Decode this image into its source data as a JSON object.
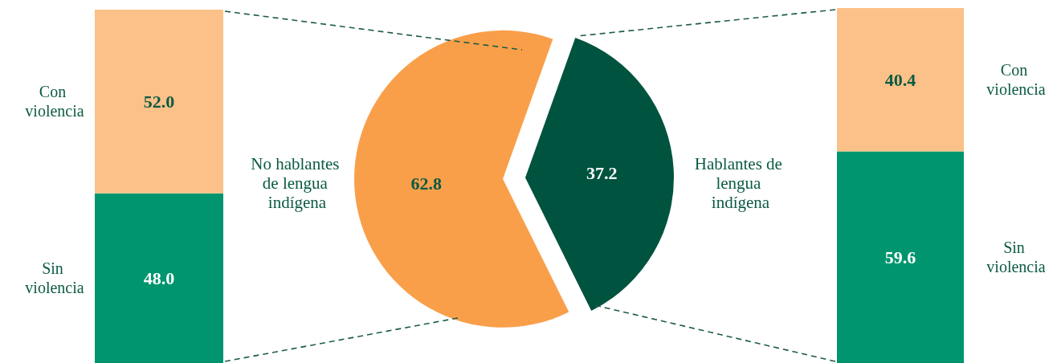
{
  "chart_data": [
    {
      "type": "bar",
      "stacked": true,
      "categories": [
        null
      ],
      "ylim": [
        0,
        100
      ],
      "tick_labels": false,
      "series": [
        {
          "name": "Sin violencia",
          "color": "#00956e",
          "values": [
            48.0
          ],
          "value_labels": [
            "48.0"
          ]
        },
        {
          "name": "Con violencia",
          "color": "#fcc188",
          "values": [
            52.0
          ],
          "value_labels": [
            "52.0"
          ]
        }
      ]
    },
    {
      "type": "pie",
      "categories": [
        "No hablantes de lengua indígena",
        "Hablantes de lengua indígena"
      ],
      "values": [
        62.8,
        37.2
      ],
      "colors": [
        "#f99f4a",
        "#00533f"
      ],
      "data_labels": true
    },
    {
      "type": "bar",
      "stacked": true,
      "categories": [
        null
      ],
      "ylim": [
        0,
        100
      ],
      "tick_labels": false,
      "series": [
        {
          "name": "Sin violencia",
          "color": "#00956e",
          "values": [
            59.6
          ],
          "value_labels": [
            "59.6"
          ]
        },
        {
          "name": "Con violencia",
          "color": "#fcc188",
          "values": [
            40.4
          ],
          "value_labels": [
            "40.4"
          ]
        }
      ]
    }
  ]
}
